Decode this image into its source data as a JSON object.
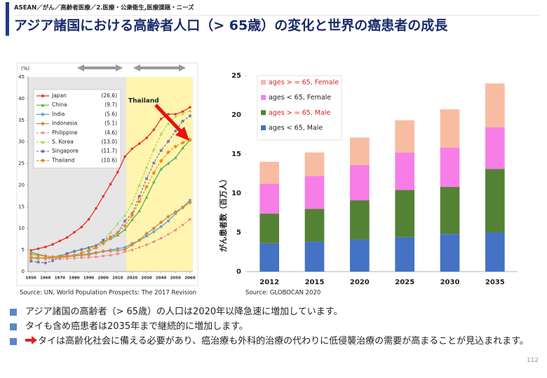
{
  "header": {
    "breadcrumb": "ASEAN／がん／高齢者医療／2.医療・公衆衛生,医療課題・ニーズ",
    "title": "アジア諸国における高齢者人口（> 65歳）の変化と世界の癌患者の成長"
  },
  "chart_data": [
    {
      "type": "line",
      "y_label": "(%)",
      "annotation": "Thailand",
      "source": "Source: UN, World Population Prospects: The 2017 Revision",
      "x": [
        1950,
        1955,
        1960,
        1965,
        1970,
        1975,
        1980,
        1985,
        1990,
        1995,
        2000,
        2005,
        2010,
        2015,
        2020,
        2025,
        2030,
        2035,
        2040,
        2045,
        2050,
        2055,
        2060
      ],
      "xlim": [
        1948,
        2062
      ],
      "xticks": [
        1950,
        1960,
        1970,
        1980,
        1990,
        2000,
        2010,
        2020,
        2030,
        2040,
        2050,
        2060
      ],
      "ylim": [
        0,
        45
      ],
      "yticks": [
        0,
        5,
        10,
        15,
        20,
        25,
        30,
        35,
        40,
        45
      ],
      "series": [
        {
          "name": "Japan",
          "legend_note": "(26.6)",
          "color": "#e8302a",
          "marker": "circle",
          "dashed": false,
          "values": [
            4.9,
            5.3,
            5.7,
            6.3,
            7.1,
            7.9,
            9.1,
            10.3,
            12.1,
            14.6,
            17.4,
            20.2,
            23.0,
            26.6,
            28.4,
            29.6,
            30.9,
            32.8,
            35.3,
            36.4,
            36.4,
            37.0,
            38.0
          ]
        },
        {
          "name": "China",
          "legend_note": "(9.7)",
          "color": "#55b04a",
          "marker": "triangle",
          "dashed": false,
          "values": [
            4.5,
            4.0,
            3.6,
            3.4,
            3.7,
            4.1,
            4.7,
            5.1,
            5.6,
            6.1,
            6.9,
            7.6,
            8.4,
            9.7,
            12.0,
            14.0,
            17.2,
            20.7,
            23.7,
            25.0,
            26.3,
            28.6,
            30.4
          ]
        },
        {
          "name": "India",
          "legend_note": "(5.6)",
          "color": "#5aa3dc",
          "marker": "square",
          "dashed": false,
          "values": [
            3.1,
            3.2,
            3.1,
            3.2,
            3.3,
            3.6,
            3.8,
            3.9,
            4.1,
            4.4,
            4.7,
            5.0,
            5.3,
            5.6,
            6.5,
            7.2,
            8.2,
            9.2,
            10.4,
            11.7,
            13.4,
            14.9,
            16.5
          ]
        },
        {
          "name": "Indonesia",
          "legend_note": "(5.1)",
          "color": "#d28c3c",
          "marker": "diamond",
          "dashed": false,
          "values": [
            4.0,
            3.8,
            3.6,
            3.4,
            3.3,
            3.4,
            3.6,
            3.8,
            3.9,
            4.3,
            4.7,
            4.8,
            4.9,
            5.1,
            6.2,
            7.3,
            8.8,
            10.0,
            11.4,
            12.7,
            13.8,
            14.8,
            16.0
          ]
        },
        {
          "name": "Philippine",
          "legend_note": "(4.6)",
          "color": "#f08a8a",
          "marker": "circle",
          "dashed": true,
          "values": [
            3.5,
            3.2,
            2.9,
            2.9,
            2.9,
            3.0,
            3.1,
            3.2,
            3.3,
            3.4,
            3.6,
            3.8,
            4.1,
            4.6,
            5.0,
            5.6,
            6.2,
            6.9,
            7.7,
            8.6,
            9.6,
            10.8,
            12.1
          ]
        },
        {
          "name": "S. Korea",
          "legend_note": "(13.0)",
          "color": "#a6d65a",
          "marker": "triangle",
          "dashed": true,
          "values": [
            2.9,
            3.0,
            3.3,
            3.4,
            3.5,
            3.5,
            3.8,
            4.3,
            5.0,
            5.7,
            7.3,
            9.0,
            11.1,
            13.0,
            15.7,
            20.0,
            24.1,
            28.2,
            31.8,
            34.2,
            35.9,
            36.5,
            37.2
          ]
        },
        {
          "name": "Singapore",
          "legend_note": "(11.7)",
          "color": "#7b6cc0",
          "marker": "square",
          "dashed": true,
          "values": [
            2.4,
            2.2,
            2.0,
            2.5,
            3.3,
            4.2,
            4.7,
            5.1,
            5.5,
            5.9,
            7.3,
            8.0,
            9.0,
            11.7,
            13.4,
            17.4,
            21.5,
            25.1,
            28.0,
            30.1,
            32.5,
            34.8,
            36.0
          ]
        },
        {
          "name": "Thailand",
          "legend_note": "(10.6)",
          "color": "#f08a10",
          "marker": "diamond",
          "dashed": true,
          "values": [
            3.2,
            3.1,
            3.2,
            3.3,
            3.4,
            3.6,
            3.8,
            4.3,
            4.8,
            5.5,
            6.5,
            7.7,
            8.9,
            10.6,
            13.0,
            16.2,
            19.6,
            22.8,
            25.6,
            27.6,
            28.9,
            29.8,
            30.6
          ]
        }
      ]
    },
    {
      "type": "stacked_bar",
      "y_label": "がん患者数（百万人）",
      "source": "Source: GLOBOCAN 2020",
      "categories": [
        "2012",
        "2015",
        "2020",
        "2025",
        "2030",
        "2035"
      ],
      "ylim": [
        0,
        25
      ],
      "yticks": [
        0,
        5,
        10,
        15,
        20,
        25
      ],
      "grid": false,
      "legend": "top-left",
      "series": [
        {
          "name": "ages < 65, Male",
          "color": "#4472c4",
          "legend_text_color": "#222222",
          "values": [
            3.6,
            3.8,
            4.1,
            4.4,
            4.8,
            5.0
          ]
        },
        {
          "name": "ages > = 65, Male",
          "color": "#548235",
          "legend_text_color": "#e02020",
          "values": [
            3.8,
            4.2,
            5.0,
            6.0,
            6.0,
            8.1
          ]
        },
        {
          "name": "ages < 65, Female",
          "color": "#f77ee6",
          "legend_text_color": "#222222",
          "values": [
            3.8,
            4.2,
            4.5,
            4.8,
            5.0,
            5.3
          ]
        },
        {
          "name": "ages > = 65, Female",
          "color": "#f8bca2",
          "legend_text_color": "#e02020",
          "values": [
            2.8,
            3.0,
            3.5,
            4.1,
            4.9,
            5.6
          ]
        }
      ]
    }
  ],
  "bullets": [
    "アジア諸国の高齢者（> 65歳）の人口は2020年以降急速に増加しています。",
    "タイも含め癌患者は2035年まで継続的に増加します。",
    "タイは高齢化社会に備える必要があり、癌治療も外科的治療の代わりに低侵襲治療の需要が高まることが見込まれます。"
  ],
  "page_number": "112"
}
